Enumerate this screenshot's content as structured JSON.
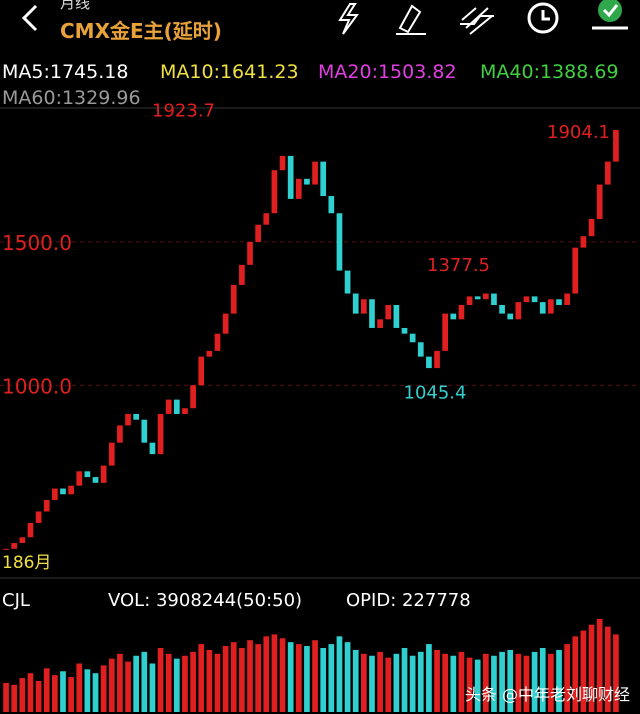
{
  "header": {
    "period": "月线",
    "title": "CMX金E主(延时)"
  },
  "ma_labels": [
    "MA5:1745.18",
    "MA10:1641.23",
    "MA20:1503.82",
    "MA40:1388.69",
    "MA60:1329.96"
  ],
  "chart_data": {
    "type": "candlestick",
    "ylim": [
      335,
      1960
    ],
    "yticks": [
      {
        "value": 1500,
        "label": "1500.0"
      },
      {
        "value": 1000,
        "label": "1000.0"
      }
    ],
    "annotations": [
      1923.7,
      1904.1,
      1377.5,
      1045.4
    ],
    "x_label": "186月",
    "closes": [
      430,
      450,
      470,
      520,
      560,
      600,
      640,
      620,
      650,
      700,
      680,
      660,
      720,
      800,
      860,
      900,
      880,
      800,
      760,
      900,
      950,
      900,
      920,
      1000,
      1100,
      1120,
      1180,
      1250,
      1350,
      1420,
      1500,
      1560,
      1600,
      1750,
      1800,
      1650,
      1720,
      1700,
      1780,
      1660,
      1600,
      1400,
      1320,
      1250,
      1300,
      1200,
      1230,
      1280,
      1200,
      1180,
      1150,
      1100,
      1060,
      1120,
      1250,
      1230,
      1280,
      1310,
      1300,
      1320,
      1280,
      1250,
      1230,
      1290,
      1310,
      1290,
      1250,
      1300,
      1280,
      1320,
      1480,
      1520,
      1580,
      1700,
      1780,
      1890
    ],
    "volume": {
      "labels": [
        "CJL",
        "VOL: 3908244(50:50)",
        "OPID: 227778"
      ],
      "ylim": [
        0,
        100
      ],
      "values": [
        30,
        28,
        35,
        40,
        32,
        45,
        38,
        42,
        36,
        50,
        44,
        40,
        48,
        55,
        60,
        52,
        58,
        62,
        50,
        66,
        60,
        55,
        58,
        62,
        70,
        64,
        60,
        68,
        72,
        66,
        74,
        70,
        78,
        80,
        76,
        72,
        70,
        68,
        74,
        66,
        70,
        78,
        72,
        64,
        60,
        58,
        62,
        56,
        60,
        66,
        58,
        62,
        70,
        64,
        60,
        58,
        62,
        56,
        54,
        60,
        58,
        62,
        64,
        60,
        58,
        62,
        66,
        60,
        64,
        70,
        78,
        84,
        90,
        96,
        88,
        80
      ]
    }
  },
  "watermark": "头条 @中年老刘聊财经"
}
